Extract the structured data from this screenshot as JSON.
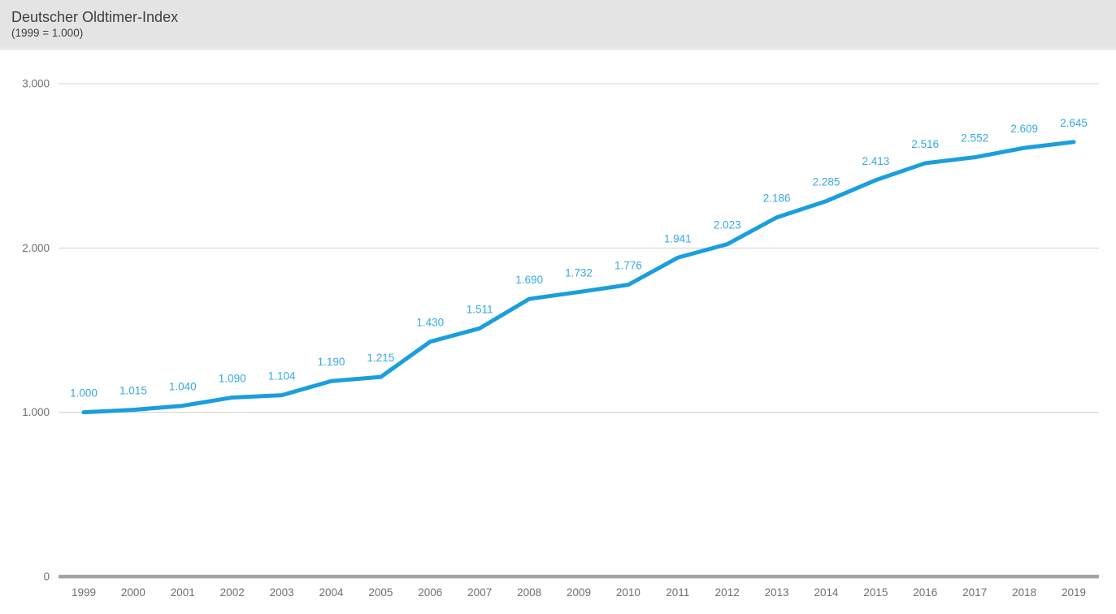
{
  "header": {
    "title": "Deutscher Oldtimer-Index",
    "subtitle": "(1999 = 1.000)"
  },
  "chart_data": {
    "type": "line",
    "title": "Deutscher Oldtimer-Index",
    "subtitle": "(1999 = 1.000)",
    "x": [
      "1999",
      "2000",
      "2001",
      "2002",
      "2003",
      "2004",
      "2005",
      "2006",
      "2007",
      "2008",
      "2009",
      "2010",
      "2011",
      "2012",
      "2013",
      "2014",
      "2015",
      "2016",
      "2017",
      "2018",
      "2019"
    ],
    "series": [
      {
        "name": "Deutscher Oldtimer-Index",
        "values": [
          1000,
          1015,
          1040,
          1090,
          1104,
          1190,
          1215,
          1430,
          1511,
          1690,
          1732,
          1776,
          1941,
          2023,
          2186,
          2285,
          2413,
          2516,
          2552,
          2609,
          2645
        ],
        "point_labels": [
          "1.000",
          "1.015",
          "1.040",
          "1.090",
          "1.104",
          "1.190",
          "1.215",
          "1.430",
          "1.511",
          "1.690",
          "1.732",
          "1.776",
          "1.941",
          "2.023",
          "2.186",
          "2.285",
          "2.413",
          "2.516",
          "2.552",
          "2.609",
          "2.645"
        ]
      }
    ],
    "y_ticks": [
      {
        "value": 3000,
        "label": "3.000"
      },
      {
        "value": 2000,
        "label": "2.000"
      },
      {
        "value": 1000,
        "label": "1.000"
      },
      {
        "value": 0,
        "label": "0"
      }
    ],
    "ylim": [
      0,
      3000
    ],
    "xlabel": "",
    "ylabel": "",
    "grid": true,
    "legend_position": "none",
    "colors": {
      "line": "#1a9ede",
      "point_label": "#35a9e1",
      "axis_label": "#6f6f6f",
      "gridline": "#d0d0d0",
      "baseline": "#a3a3a3",
      "header_bg": "#e4e4e4",
      "title_text": "#3f3f3f"
    }
  }
}
